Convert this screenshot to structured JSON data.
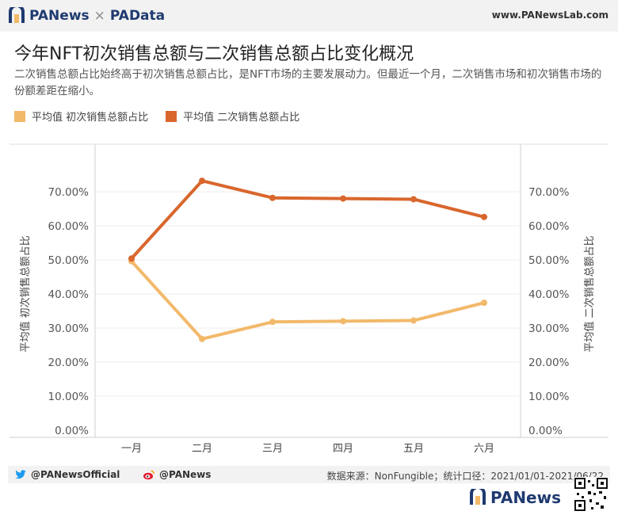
{
  "header": {
    "brand_left": "PANews",
    "brand_sep": "×",
    "brand_right": "PAData",
    "url": "www.PANewsLab.com"
  },
  "title": "今年NFT初次销售总额与二次销售总额占比变化概况",
  "subtitle": "二次销售总额占比始终高于初次销售总额占比，是NFT市场的主要发展动力。但最近一个月，二次销售市场和初次销售市场的份额差距在缩小。",
  "colors": {
    "primary_series": "#f2b96a",
    "secondary_series": "#d9662d",
    "brand_blue": "#1f3a70"
  },
  "chart_data": {
    "type": "line",
    "categories": [
      "一月",
      "二月",
      "三月",
      "四月",
      "五月",
      "六月"
    ],
    "series": [
      {
        "name": "平均值 初次销售总额占比",
        "values": [
          49.6,
          26.8,
          31.8,
          32.0,
          32.2,
          37.4
        ],
        "color": "#f2b96a",
        "axis": "left"
      },
      {
        "name": "平均值 二次销售总额占比",
        "values": [
          50.4,
          73.2,
          68.2,
          68.0,
          67.8,
          62.6
        ],
        "color": "#d9662d",
        "axis": "right"
      }
    ],
    "ylabel_left": "平均值 初次销售总额占比",
    "ylabel_right": "平均值 二次销售总额占比",
    "y_ticks": [
      "0.00%",
      "10.00%",
      "20.00%",
      "30.00%",
      "40.00%",
      "50.00%",
      "60.00%",
      "70.00%"
    ],
    "ylim": [
      0,
      80
    ],
    "grid": true,
    "legend_position": "top-left"
  },
  "footer": {
    "twitter": "@PANewsOfficial",
    "weibo": "@PANews",
    "source": "数据来源：NonFungible；统计口径：2021/01/01-2021/06/22"
  },
  "bottom_brand": "PANews"
}
